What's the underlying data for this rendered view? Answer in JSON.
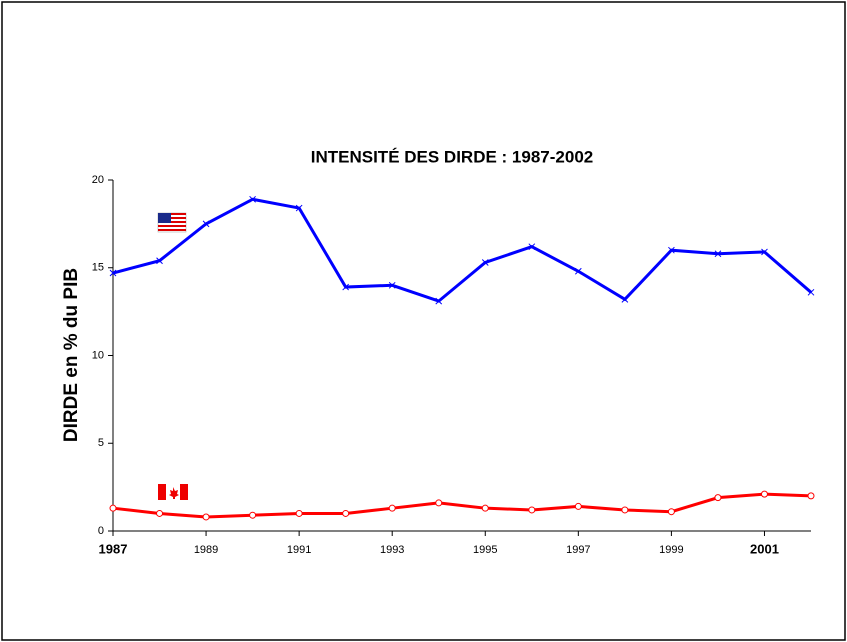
{
  "chart_data": {
    "type": "line",
    "title": "INTENSITÉ DES DIRDE : 1987-2002",
    "y_label": "DIRDE en % du PIB",
    "x": [
      1987,
      1988,
      1989,
      1990,
      1991,
      1992,
      1993,
      1994,
      1995,
      1996,
      1997,
      1998,
      1999,
      2000,
      2001,
      2002
    ],
    "series": [
      {
        "color": "#0000ff",
        "marker": "x",
        "values": [
          14.7,
          15.4,
          17.5,
          18.9,
          18.4,
          13.9,
          14.0,
          13.1,
          15.3,
          16.2,
          14.8,
          13.2,
          16.0,
          15.8,
          15.9,
          13.6
        ]
      },
      {
        "color": "#ff0000",
        "marker": "circle",
        "values": [
          1.3,
          1.0,
          0.8,
          0.9,
          1.0,
          1.0,
          1.3,
          1.6,
          1.3,
          1.2,
          1.4,
          1.2,
          1.1,
          1.9,
          2.1,
          2.0
        ]
      }
    ],
    "xlim": [
      1987,
      2002
    ],
    "xticks": [
      1987,
      1989,
      1991,
      1993,
      1995,
      1997,
      1999,
      2001
    ],
    "ylim": [
      0,
      20
    ],
    "yticks": [
      0,
      5,
      10,
      15,
      20
    ]
  }
}
